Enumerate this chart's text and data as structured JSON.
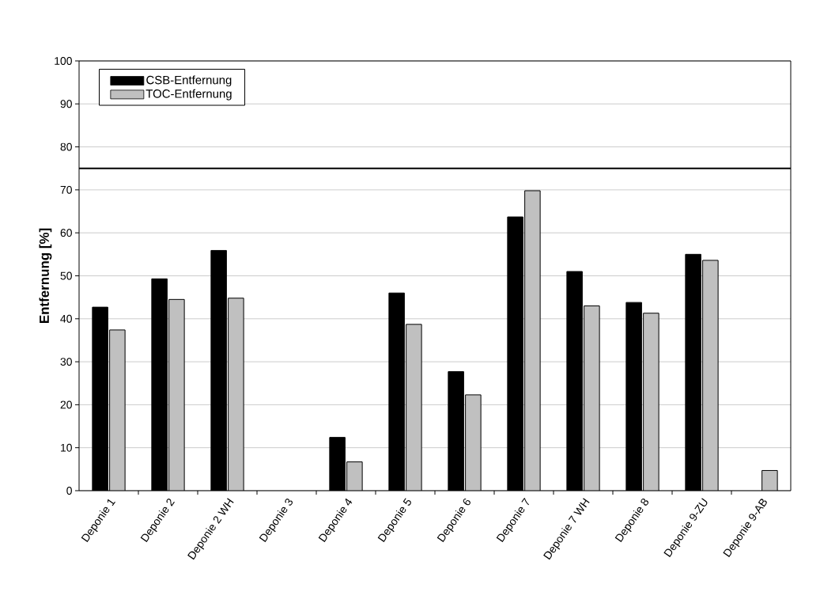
{
  "chart_data": {
    "type": "bar",
    "ylabel": "Entfernung [%]",
    "categories": [
      "Deponie 1",
      "Deponie 2",
      "Deponie 2 WH",
      "Deponie 3",
      "Deponie 4",
      "Deponie 5",
      "Deponie 6",
      "Deponie 7",
      "Deponie 7 WH",
      "Deponie 8",
      "Deponie 9-ZU",
      "Deponie 9-AB"
    ],
    "series": [
      {
        "name": "CSB-Entfernung",
        "color": "#000000",
        "values": [
          42.7,
          49.3,
          55.9,
          null,
          12.4,
          46.0,
          27.7,
          63.7,
          51.0,
          43.8,
          55.0,
          null
        ]
      },
      {
        "name": "TOC-Entfernung",
        "color": "#c0c0c0",
        "values": [
          37.4,
          44.5,
          44.8,
          null,
          6.7,
          38.7,
          22.3,
          69.8,
          43.0,
          41.3,
          53.6,
          4.7
        ]
      }
    ],
    "ylim": [
      0,
      100
    ],
    "yticks": [
      0,
      10,
      20,
      30,
      40,
      50,
      60,
      70,
      80,
      90,
      100
    ],
    "grid": "y",
    "legend": "top left",
    "ref_lines": [
      {
        "axis": "y",
        "value": 75,
        "color": "#000000"
      }
    ]
  }
}
